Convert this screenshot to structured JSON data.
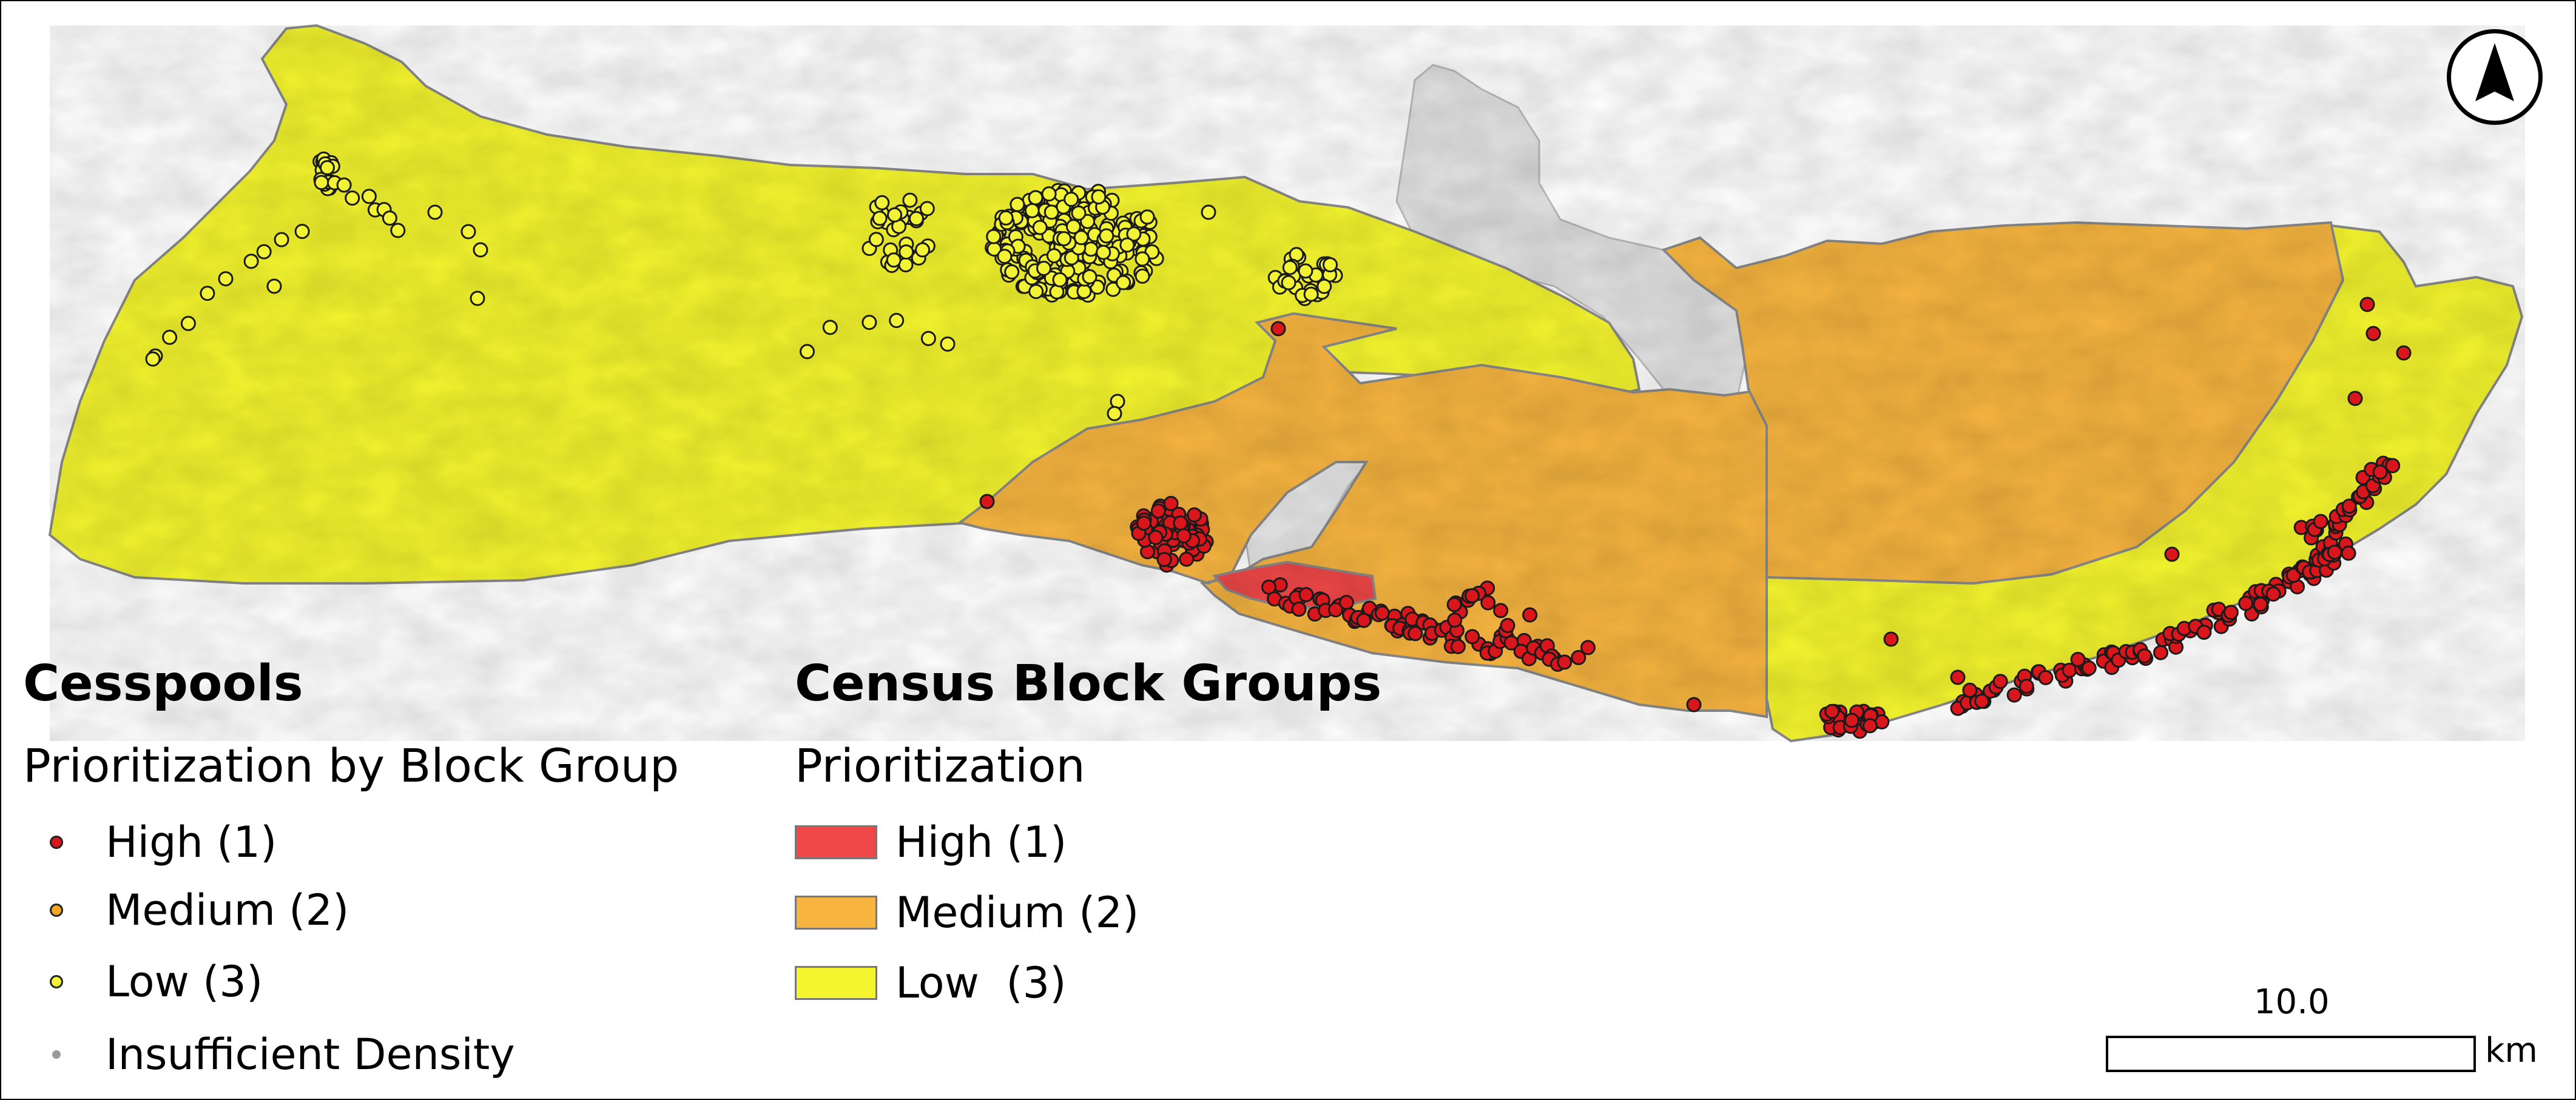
{
  "colors": {
    "high": "#f04848",
    "medium": "#f7b540",
    "low": "#f4f52e",
    "low_dot": "#f3f335",
    "high_dot": "#d8161c",
    "medium_dot": "#f5a623",
    "insufficient_dot": "#9a9a9a",
    "terrain": "#e4e4e4",
    "outline": "#8a8a8a"
  },
  "north_arrow": {
    "icon": "north-arrow-icon"
  },
  "cesspools_legend": {
    "title": "Cesspools",
    "subtitle": "Prioritization by Block Group",
    "items": [
      {
        "label": "High (1)",
        "color": "#d8161c"
      },
      {
        "label": "Medium (2)",
        "color": "#f5a623"
      },
      {
        "label": "Low (3)",
        "color": "#f3f335"
      },
      {
        "label": "Insufficient Density",
        "color": "#9a9a9a"
      }
    ]
  },
  "census_legend": {
    "title": "Census Block Groups",
    "subtitle": "Prioritization",
    "items": [
      {
        "label": "High (1)",
        "color": "#f04848"
      },
      {
        "label": "Medium (2)",
        "color": "#f7b540"
      },
      {
        "label": "Low  (3)",
        "color": "#f4f52e"
      }
    ]
  },
  "scale_bar": {
    "value": "10.0",
    "unit": "km"
  }
}
